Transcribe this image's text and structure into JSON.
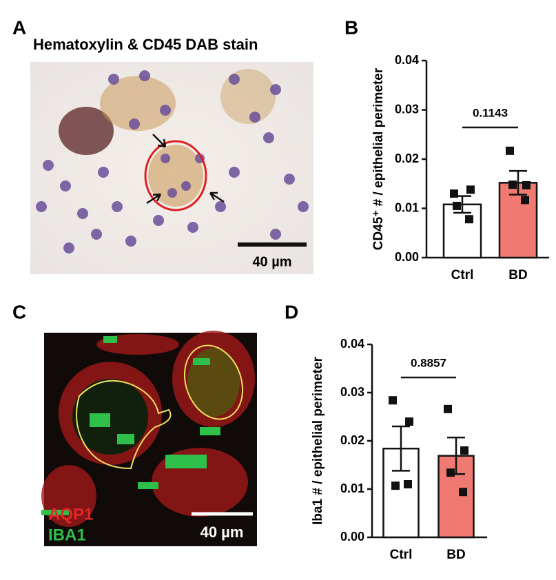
{
  "panel_labels": [
    "A",
    "B",
    "C",
    "D"
  ],
  "image_a": {
    "title": "Hematoxylin & CD45 DAB stain",
    "scale_bar": "40 µm"
  },
  "image_c": {
    "legend": [
      "AQP1",
      "IBA1"
    ],
    "scale_bar": "40 µm"
  },
  "chart_data": [
    {
      "type": "bar",
      "y_label": "CD45⁺ # / epithelial perimeter",
      "categories": [
        "Ctrl",
        "BD"
      ],
      "values": [
        0.0108,
        0.0152
      ],
      "errors": [
        0.0017,
        0.0024
      ],
      "colors": [
        "#ffffff",
        "#f07a72"
      ],
      "points": [
        [
          0.013,
          0.0138,
          0.0105,
          0.0078
        ],
        [
          0.0217,
          0.0147,
          0.0148,
          0.0117
        ]
      ],
      "significance": "0.1143",
      "ylim": [
        0,
        0.04
      ],
      "yticks": [
        {
          "value": 0,
          "label": "0.00"
        },
        {
          "value": 0.01,
          "label": "0.01"
        },
        {
          "value": 0.02,
          "label": "0.02"
        },
        {
          "value": 0.03,
          "label": "0.03"
        },
        {
          "value": 0.04,
          "label": "0.04"
        }
      ]
    },
    {
      "type": "bar",
      "y_label": "Iba1 # / epithelial perimeter",
      "categories": [
        "Ctrl",
        "BD"
      ],
      "values": [
        0.0184,
        0.0169
      ],
      "errors": [
        0.0046,
        0.0038
      ],
      "colors": [
        "#ffffff",
        "#f07a72"
      ],
      "points": [
        [
          0.0284,
          0.024,
          0.0107,
          0.011
        ],
        [
          0.0266,
          0.018,
          0.0134,
          0.0094
        ]
      ],
      "significance": "0.8857",
      "ylim": [
        0,
        0.04
      ],
      "yticks": [
        {
          "value": 0,
          "label": "0.00"
        },
        {
          "value": 0.01,
          "label": "0.01"
        },
        {
          "value": 0.02,
          "label": "0.02"
        },
        {
          "value": 0.03,
          "label": "0.03"
        },
        {
          "value": 0.04,
          "label": "0.04"
        }
      ]
    }
  ]
}
